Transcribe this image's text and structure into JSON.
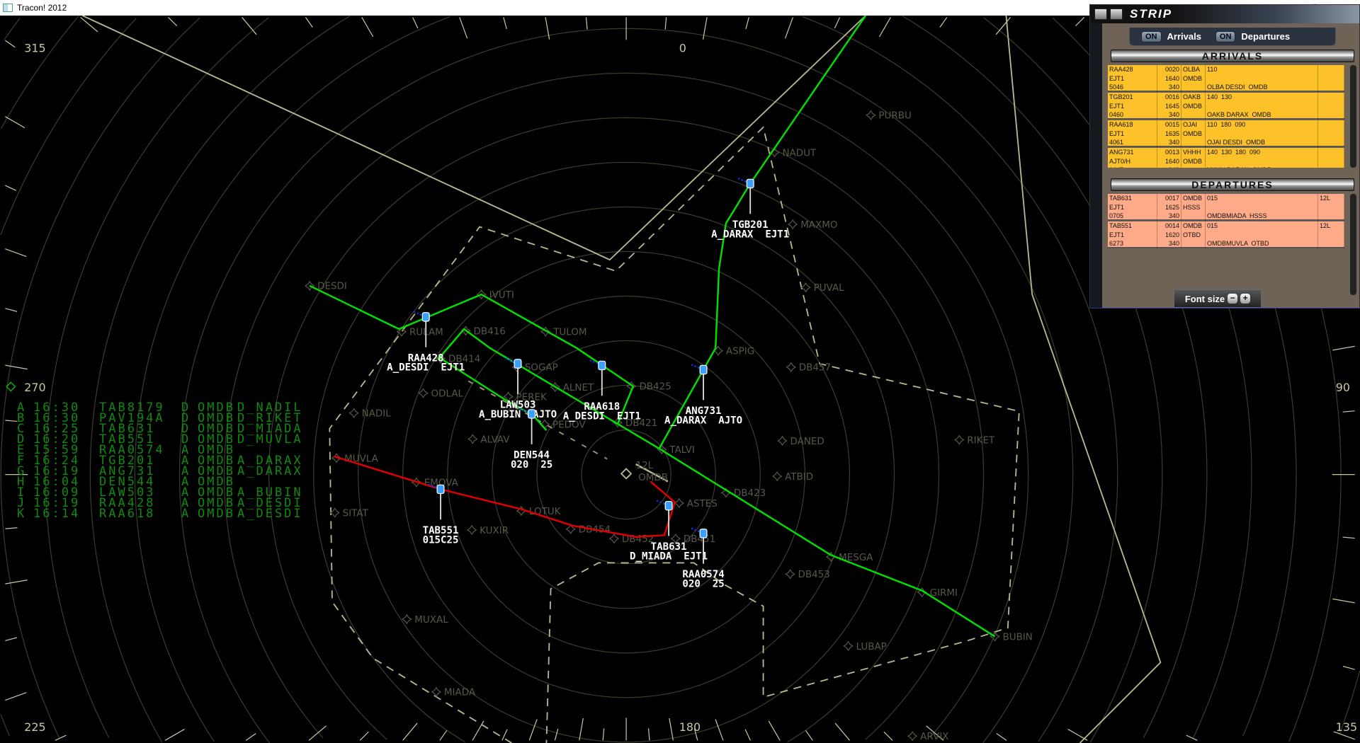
{
  "window": {
    "title": "Tracon! 2012"
  },
  "colors": {
    "route_arrival": "#00e000",
    "route_departure": "#e00000",
    "waypoint": "#57574a",
    "rings": "#3c3b2c",
    "boundary": "#b9b78f",
    "list_text": "#0f8a0f",
    "arrival_strip": "#fdc22a",
    "departure_strip": "#ffab8a"
  },
  "compass": [
    {
      "label": "315"
    },
    {
      "label": "0"
    },
    {
      "label": "270"
    },
    {
      "label": "90"
    },
    {
      "label": "225"
    },
    {
      "label": "180"
    },
    {
      "label": "135"
    }
  ],
  "airport": {
    "name": "OMDB",
    "runway": "12L"
  },
  "waypoints": [
    "DESDI",
    "IVUTI",
    "RULAM",
    "DB416",
    "DB414",
    "TULOM",
    "SOGAP",
    "ALNET",
    "PEREK",
    "ODLAL",
    "DB425",
    "PEDOV",
    "DB421",
    "ALVAV",
    "NADIL",
    "MUVLA",
    "EMOVA",
    "SITAT",
    "LOTUK",
    "KUXIR",
    "DB454",
    "DB452",
    "DB451",
    "ASTES",
    "TALVI",
    "DANED",
    "ATBID",
    "DB423",
    "RIKET",
    "DB457",
    "ASPIG",
    "PUVAL",
    "MAXMO",
    "NADUT",
    "PURBU",
    "MESGA",
    "DB453",
    "GIRMI",
    "LUBAP",
    "BUBIN",
    "MUXAL",
    "MIADA",
    "ARVIX"
  ],
  "aircraft": [
    {
      "callsign": "TGB201",
      "info": "A_DARAX  EJT1"
    },
    {
      "callsign": "RAA428",
      "info": "A_DESDI  EJT1"
    },
    {
      "callsign": "LAW503",
      "info": "A_BUBIN  AJTO"
    },
    {
      "callsign": "RAA618",
      "info": "A_DESDI  EJT1"
    },
    {
      "callsign": "ANG731",
      "info": "A_DARAX  AJTO"
    },
    {
      "callsign": "DEN544",
      "info": "020  25"
    },
    {
      "callsign": "TAB551",
      "info": "015C25"
    },
    {
      "callsign": "TAB631",
      "info": "D_MIADA  EJT1"
    },
    {
      "callsign": "RAA0574",
      "info": "020  25"
    }
  ],
  "flight_list": [
    {
      "id": "A",
      "time": "16:30",
      "callsign": "TAB8179",
      "type": "D",
      "airport": "OMDB",
      "route": "D_NADIL"
    },
    {
      "id": "B",
      "time": "16:30",
      "callsign": "PAV194A",
      "type": "D",
      "airport": "OMDB",
      "route": "D_RIKET"
    },
    {
      "id": "C",
      "time": "16:25",
      "callsign": "TAB631",
      "type": "D",
      "airport": "OMDB",
      "route": "D_MIADA"
    },
    {
      "id": "D",
      "time": "16:20",
      "callsign": "TAB551",
      "type": "D",
      "airport": "OMDB",
      "route": "D_MUVLA"
    },
    {
      "id": "E",
      "time": "15:59",
      "callsign": "RAA0574",
      "type": "A",
      "airport": "OMDB",
      "route": ""
    },
    {
      "id": "F",
      "time": "16:24",
      "callsign": "TGB201",
      "type": "A",
      "airport": "OMDB",
      "route": "A_DARAX"
    },
    {
      "id": "G",
      "time": "16:19",
      "callsign": "ANG731",
      "type": "A",
      "airport": "OMDB",
      "route": "A_DARAX"
    },
    {
      "id": "H",
      "time": "16:04",
      "callsign": "DEN544",
      "type": "A",
      "airport": "OMDB",
      "route": ""
    },
    {
      "id": "I",
      "time": "16:09",
      "callsign": "LAW503",
      "type": "A",
      "airport": "OMDB",
      "route": "A_BUBIN"
    },
    {
      "id": "J",
      "time": "16:19",
      "callsign": "RAA428",
      "type": "A",
      "airport": "OMDB",
      "route": "A_DESDI"
    },
    {
      "id": "K",
      "time": "16:14",
      "callsign": "RAA618",
      "type": "A",
      "airport": "OMDB",
      "route": "A_DESDI"
    }
  ],
  "strip": {
    "title": "STRIP",
    "toggle_on": "ON",
    "arrivals_label": "Arrivals",
    "departures_label": "Departures",
    "arrivals_header": "ARRIVALS",
    "departures_header": "DEPARTURES",
    "font_size_label": "Font size",
    "minus": "−",
    "plus": "+",
    "arrivals": [
      {
        "c1": [
          "RAA428",
          "EJT1",
          "5046"
        ],
        "c2": [
          "0020",
          "1640",
          "340"
        ],
        "c3": [
          "OLBA",
          "OMDB",
          ""
        ],
        "c4": [
          "110",
          "",
          "OLBA DESDI  OMDB"
        ],
        "c5": [
          "",
          "",
          ""
        ]
      },
      {
        "c1": [
          "TGB201",
          "EJT1",
          "0460"
        ],
        "c2": [
          "0016",
          "1645",
          "340"
        ],
        "c3": [
          "OAKB",
          "OMDB",
          ""
        ],
        "c4": [
          "140  130",
          "",
          "OAKB DARAX  OMDB"
        ],
        "c5": [
          "",
          "",
          ""
        ]
      },
      {
        "c1": [
          "RAA618",
          "EJT1",
          "4061"
        ],
        "c2": [
          "0015",
          "1635",
          "340"
        ],
        "c3": [
          "OJAI",
          "OMDB",
          ""
        ],
        "c4": [
          "110  180  090",
          "",
          "OJAI DESDI  OMDB"
        ],
        "c5": [
          "",
          "",
          ""
        ]
      },
      {
        "c1": [
          "ANG731",
          "AJT0/H",
          "6447"
        ],
        "c2": [
          "0013",
          "1640",
          "340"
        ],
        "c3": [
          "VHHH",
          "OMDB",
          ""
        ],
        "c4": [
          "140  130  180  090",
          "",
          "VHHH DARAX  OMDB"
        ],
        "c5": [
          "",
          "",
          ""
        ]
      }
    ],
    "departures": [
      {
        "c1": [
          "TAB631",
          "EJT1",
          "0705"
        ],
        "c2": [
          "0017",
          "1625",
          "340"
        ],
        "c3": [
          "OMDB",
          "HSSS",
          ""
        ],
        "c4": [
          "015",
          "",
          "OMDBMIADA  HSSS"
        ],
        "c5": [
          "12L",
          "",
          ""
        ]
      },
      {
        "c1": [
          "TAB551",
          "EJT1",
          "6273"
        ],
        "c2": [
          "0014",
          "1620",
          "340"
        ],
        "c3": [
          "OMDB",
          "OTBD",
          ""
        ],
        "c4": [
          "015",
          "",
          "OMDBMUVLA  OTBD"
        ],
        "c5": [
          "12L",
          "",
          ""
        ]
      }
    ]
  }
}
